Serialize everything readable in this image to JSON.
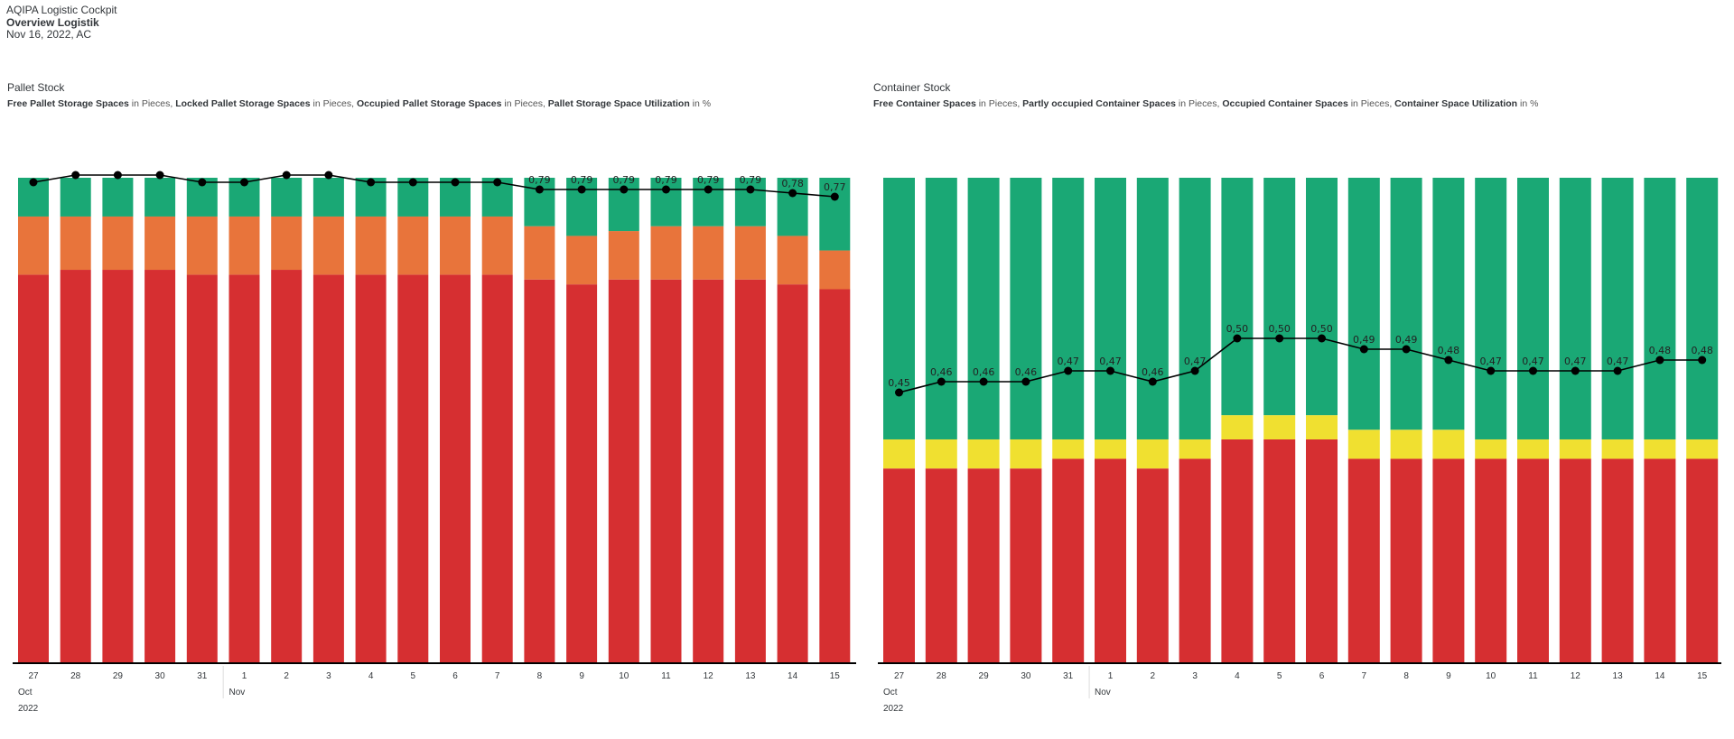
{
  "header": {
    "app_title": "AQIPA Logistic Cockpit",
    "page_title": "Overview Logistik",
    "date_info": "Nov 16, 2022, AC"
  },
  "colors": {
    "green": "#1aa875",
    "orange": "#e8743b",
    "red": "#d62f31",
    "yellow": "#f0e030",
    "line": "#000000"
  },
  "chart_data": [
    {
      "type": "bar",
      "stacked": true,
      "title": "Pallet Stock",
      "subtitle_parts": [
        {
          "bold": "Free Pallet Storage Spaces",
          "unit": " in Pieces, "
        },
        {
          "bold": "Locked Pallet Storage Spaces",
          "unit": " in Pieces, "
        },
        {
          "bold": "Occupied Pallet Storage Spaces",
          "unit": " in Pieces, "
        },
        {
          "bold": "Pallet Storage Space Utilization",
          "unit": " in %"
        }
      ],
      "categories": [
        "27",
        "28",
        "29",
        "30",
        "31",
        "1",
        "2",
        "3",
        "4",
        "5",
        "6",
        "7",
        "8",
        "9",
        "10",
        "11",
        "12",
        "13",
        "14",
        "15"
      ],
      "month_labels": [
        {
          "label": "Oct",
          "at": "27"
        },
        {
          "label": "Nov",
          "at": "1"
        }
      ],
      "year_label": "2022",
      "series": [
        {
          "name": "Occupied Pallet Storage Spaces",
          "color": "red",
          "values": [
            0.8,
            0.81,
            0.81,
            0.81,
            0.8,
            0.8,
            0.81,
            0.8,
            0.8,
            0.8,
            0.8,
            0.8,
            0.79,
            0.78,
            0.79,
            0.79,
            0.79,
            0.79,
            0.78,
            0.77
          ]
        },
        {
          "name": "Locked Pallet Storage Spaces",
          "color": "orange",
          "values": [
            0.12,
            0.11,
            0.11,
            0.11,
            0.12,
            0.12,
            0.11,
            0.12,
            0.12,
            0.12,
            0.12,
            0.12,
            0.11,
            0.1,
            0.1,
            0.11,
            0.11,
            0.11,
            0.1,
            0.08
          ]
        },
        {
          "name": "Free Pallet Storage Spaces",
          "color": "green",
          "values": [
            0.08,
            0.08,
            0.08,
            0.08,
            0.08,
            0.08,
            0.08,
            0.08,
            0.08,
            0.08,
            0.08,
            0.08,
            0.1,
            0.12,
            0.11,
            0.1,
            0.1,
            0.1,
            0.12,
            0.15
          ]
        }
      ],
      "line": {
        "name": "Pallet Storage Space Utilization",
        "values": [
          0.81,
          0.83,
          0.83,
          0.83,
          0.81,
          0.81,
          0.83,
          0.83,
          0.81,
          0.81,
          0.81,
          0.81,
          0.79,
          0.79,
          0.79,
          0.79,
          0.79,
          0.79,
          0.78,
          0.77
        ],
        "labels": [
          "",
          "",
          "",
          "",
          "",
          "",
          "",
          "",
          "",
          "",
          "",
          "",
          "0,79",
          "0,79",
          "0,79",
          "0,79",
          "0,79",
          "0,79",
          "0,78",
          "0,77"
        ]
      },
      "ylim": [
        0,
        1
      ]
    },
    {
      "type": "bar",
      "stacked": true,
      "title": "Container Stock",
      "subtitle_parts": [
        {
          "bold": "Free Container Spaces",
          "unit": " in Pieces, "
        },
        {
          "bold": "Partly occupied Container Spaces",
          "unit": " in Pieces, "
        },
        {
          "bold": "Occupied Container Spaces",
          "unit": " in Pieces, "
        },
        {
          "bold": "Container Space Utilization",
          "unit": " in %"
        }
      ],
      "categories": [
        "27",
        "28",
        "29",
        "30",
        "31",
        "1",
        "2",
        "3",
        "4",
        "5",
        "6",
        "7",
        "8",
        "9",
        "10",
        "11",
        "12",
        "13",
        "14",
        "15"
      ],
      "month_labels": [
        {
          "label": "Oct",
          "at": "27"
        },
        {
          "label": "Nov",
          "at": "1"
        }
      ],
      "year_label": "2022",
      "series": [
        {
          "name": "Occupied Container Spaces",
          "color": "red",
          "values": [
            0.4,
            0.4,
            0.4,
            0.4,
            0.42,
            0.42,
            0.4,
            0.42,
            0.46,
            0.46,
            0.46,
            0.42,
            0.42,
            0.42,
            0.42,
            0.42,
            0.42,
            0.42,
            0.42,
            0.42
          ]
        },
        {
          "name": "Partly occupied Container Spaces",
          "color": "yellow",
          "values": [
            0.06,
            0.06,
            0.06,
            0.06,
            0.04,
            0.04,
            0.06,
            0.04,
            0.05,
            0.05,
            0.05,
            0.06,
            0.06,
            0.06,
            0.04,
            0.04,
            0.04,
            0.04,
            0.04,
            0.04
          ]
        },
        {
          "name": "Free Container Spaces",
          "color": "green",
          "values": [
            0.54,
            0.54,
            0.54,
            0.54,
            0.54,
            0.54,
            0.54,
            0.54,
            0.49,
            0.49,
            0.49,
            0.52,
            0.52,
            0.52,
            0.54,
            0.54,
            0.54,
            0.54,
            0.54,
            0.54
          ]
        }
      ],
      "line": {
        "name": "Container Space Utilization",
        "values": [
          0.45,
          0.46,
          0.46,
          0.46,
          0.47,
          0.47,
          0.46,
          0.47,
          0.5,
          0.5,
          0.5,
          0.49,
          0.49,
          0.48,
          0.47,
          0.47,
          0.47,
          0.47,
          0.48,
          0.48
        ],
        "labels": [
          "0,45",
          "0,46",
          "0,46",
          "0,46",
          "0,47",
          "0,47",
          "0,46",
          "0,47",
          "0,50",
          "0,50",
          "0,50",
          "0,49",
          "0,49",
          "0,48",
          "0,47",
          "0,47",
          "0,47",
          "0,47",
          "0,48",
          "0,48"
        ]
      },
      "ylim": [
        0,
        1
      ]
    }
  ]
}
